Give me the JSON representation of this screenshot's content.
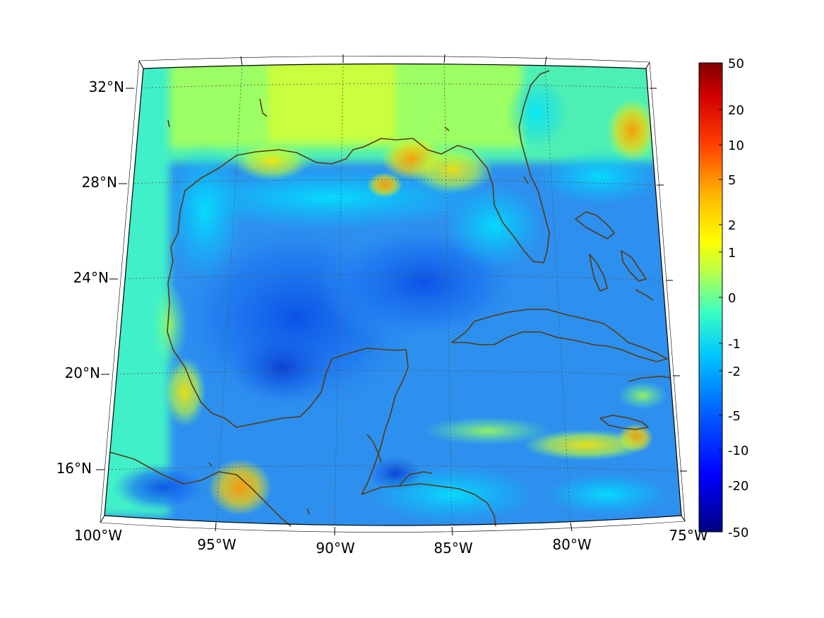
{
  "figure": {
    "lat_ticks": [
      "32°N",
      "28°N",
      "24°N",
      "20°N",
      "16°N"
    ],
    "lon_ticks": [
      "100°W",
      "95°W",
      "90°W",
      "85°W",
      "80°W",
      "75°W"
    ]
  },
  "colorbar": {
    "tick_labels": [
      "50",
      "20",
      "10",
      "5",
      "2",
      "1",
      "0",
      "-1",
      "-2",
      "-5",
      "-10",
      "-20",
      "-50"
    ],
    "colormap": "jet",
    "scale": "nonlinear (symmetric log-like)",
    "range": [
      -50,
      50
    ]
  },
  "colors": {
    "coastline": "#5a3a12",
    "frame": "#000000",
    "graticule": "#555555"
  }
}
